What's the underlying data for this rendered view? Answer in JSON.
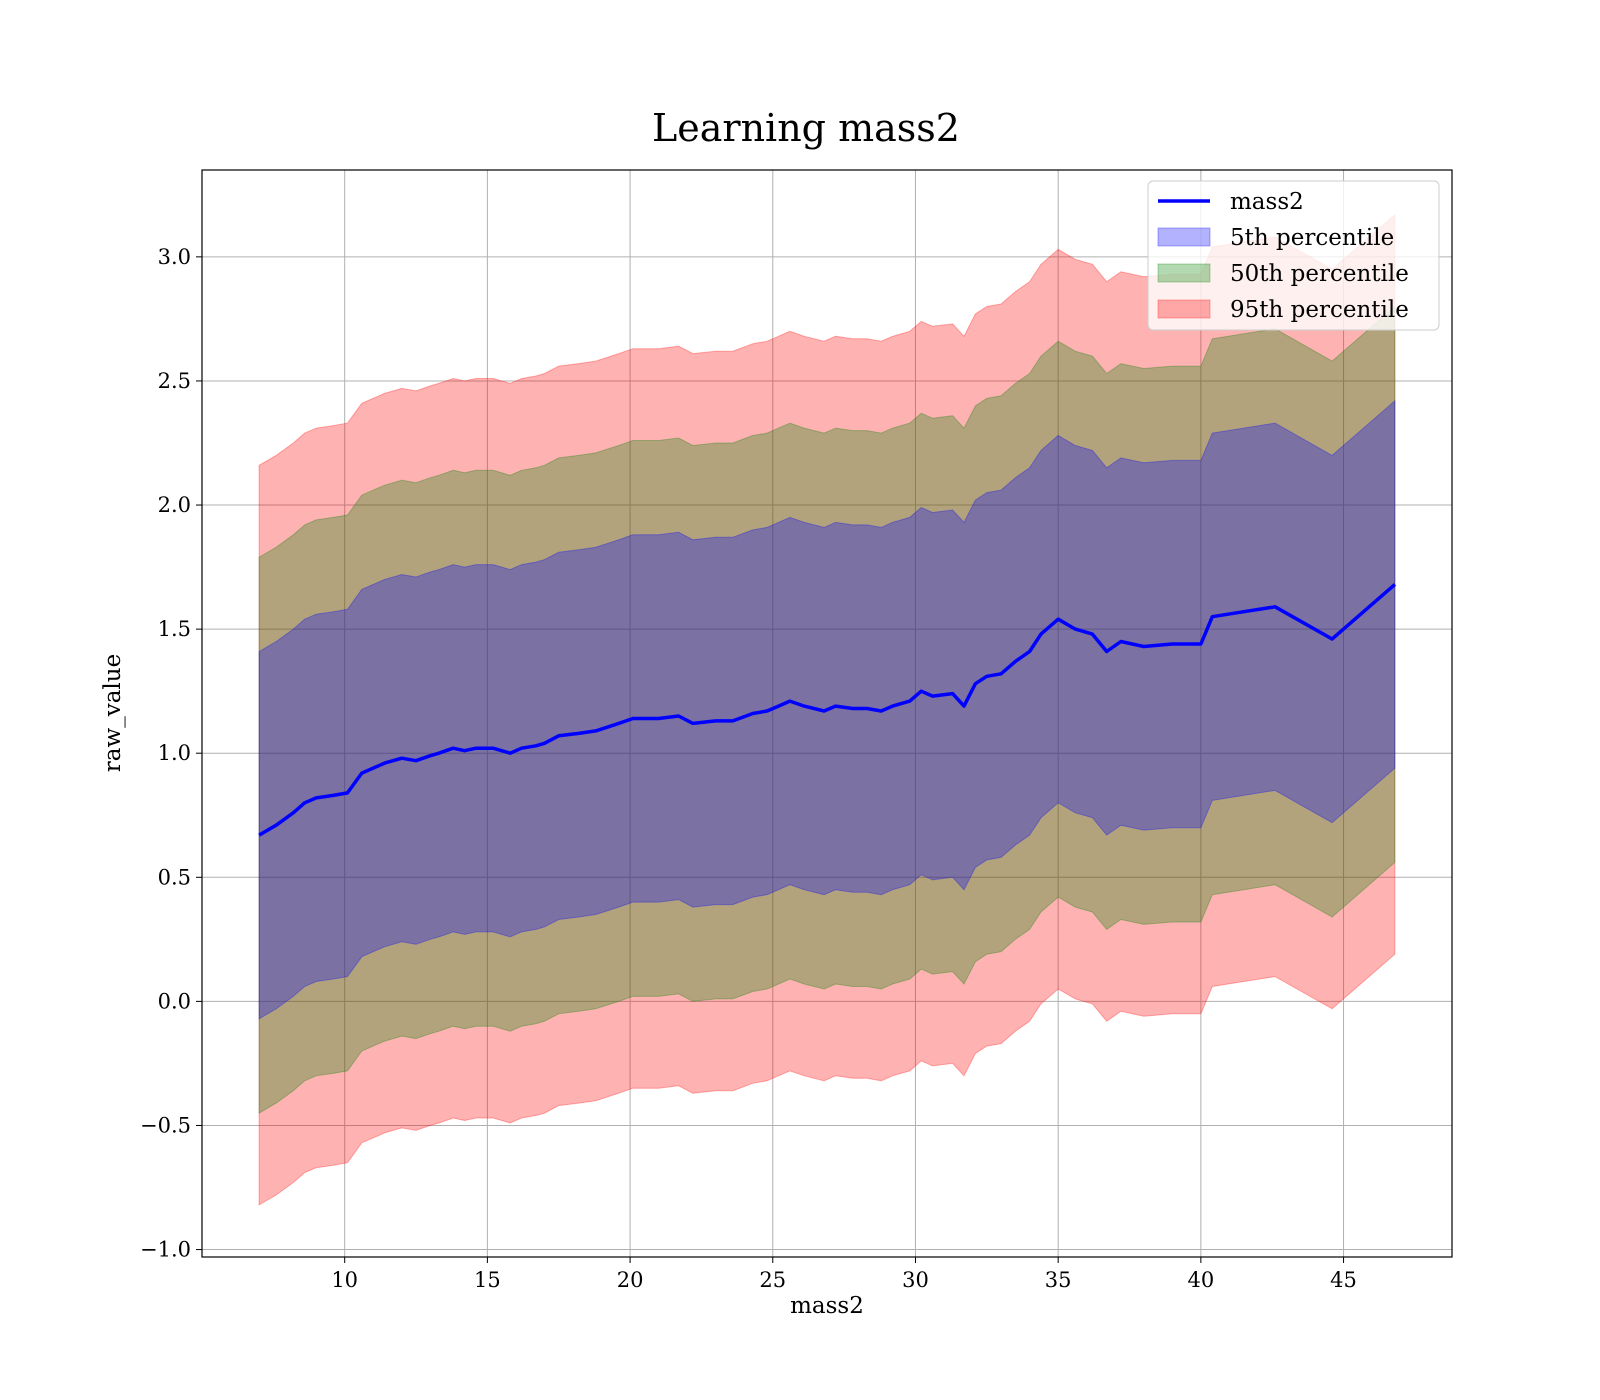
{
  "chart_data": {
    "type": "line",
    "title": "Learning mass2",
    "xlabel": "mass2",
    "ylabel": "raw_value",
    "xlim": [
      5,
      48.8
    ],
    "ylim": [
      -1.03,
      3.35
    ],
    "xticks": [
      10,
      15,
      20,
      25,
      30,
      35,
      40,
      45
    ],
    "yticks": [
      -1.0,
      -0.5,
      0.0,
      0.5,
      1.0,
      1.5,
      2.0,
      2.5,
      3.0
    ],
    "ytick_labels": [
      "−1.0",
      "−0.5",
      "0.0",
      "0.5",
      "1.0",
      "1.5",
      "2.0",
      "2.5",
      "3.0"
    ],
    "grid": true,
    "legend_position": "upper right",
    "line": {
      "name": "mass2",
      "color": "#0000ff",
      "x": [
        7.0,
        7.6,
        8.2,
        8.6,
        9.0,
        9.6,
        10.1,
        10.6,
        11.0,
        11.4,
        12.0,
        12.5,
        13.0,
        13.3,
        13.8,
        14.2,
        14.6,
        15.2,
        15.8,
        16.2,
        16.7,
        17.0,
        17.5,
        18.2,
        18.8,
        19.6,
        20.1,
        21.0,
        21.7,
        22.2,
        23.0,
        23.6,
        24.3,
        24.8,
        25.2,
        25.6,
        26.1,
        26.8,
        27.2,
        27.8,
        28.3,
        28.8,
        29.2,
        29.8,
        30.2,
        30.6,
        31.3,
        31.7,
        32.1,
        32.5,
        33.0,
        33.5,
        34.0,
        34.4,
        35.0,
        35.6,
        36.2,
        36.7,
        37.2,
        38.0,
        39.0,
        40.0,
        40.4,
        41.5,
        42.6,
        44.6,
        46.8
      ],
      "y": [
        0.67,
        0.71,
        0.76,
        0.8,
        0.82,
        0.83,
        0.84,
        0.92,
        0.94,
        0.96,
        0.98,
        0.97,
        0.99,
        1.0,
        1.02,
        1.01,
        1.02,
        1.02,
        1.0,
        1.02,
        1.03,
        1.04,
        1.07,
        1.08,
        1.09,
        1.12,
        1.14,
        1.14,
        1.15,
        1.12,
        1.13,
        1.13,
        1.16,
        1.17,
        1.19,
        1.21,
        1.19,
        1.17,
        1.19,
        1.18,
        1.18,
        1.17,
        1.19,
        1.21,
        1.25,
        1.23,
        1.24,
        1.19,
        1.28,
        1.31,
        1.32,
        1.37,
        1.41,
        1.48,
        1.54,
        1.5,
        1.48,
        1.41,
        1.45,
        1.43,
        1.44,
        1.44,
        1.55,
        1.57,
        1.59,
        1.46,
        1.68
      ]
    },
    "bands": [
      {
        "name": "95th percentile",
        "color": "#ff0000",
        "opacity": 0.3,
        "half_width": 1.49
      },
      {
        "name": "50th percentile",
        "color": "#008000",
        "opacity": 0.3,
        "half_width": 1.12
      },
      {
        "name": "5th percentile",
        "color": "#0000ff",
        "opacity": 0.3,
        "half_width": 0.74
      }
    ],
    "legend": [
      {
        "label": "mass2",
        "kind": "line",
        "color": "#0000ff"
      },
      {
        "label": "5th percentile",
        "kind": "patch",
        "color": "#0000ff"
      },
      {
        "label": "50th percentile",
        "kind": "patch",
        "color": "#008000"
      },
      {
        "label": "95th percentile",
        "kind": "patch",
        "color": "#ff0000"
      }
    ]
  }
}
